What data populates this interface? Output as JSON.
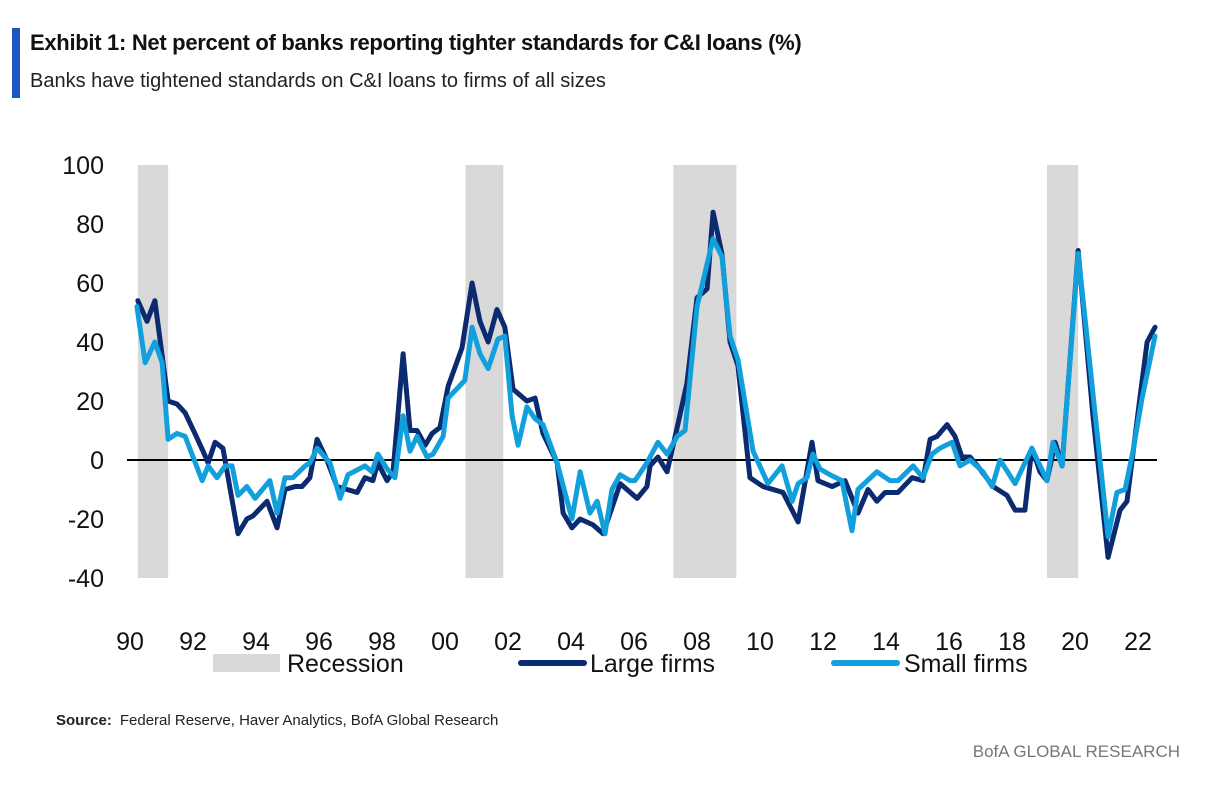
{
  "header": {
    "title": "Exhibit 1: Net percent of banks reporting tighter standards for C&I loans (%)",
    "subtitle": "Banks have tightened standards on C&I loans to firms of all sizes"
  },
  "footer": {
    "source_label": "Source:",
    "source_text": "Federal Reserve, Haver Analytics, BofA Global Research",
    "brand": "BofA GLOBAL RESEARCH"
  },
  "chart_data": {
    "type": "line",
    "title": "Exhibit 1: Net percent of banks reporting tighter standards for C&I loans (%)",
    "xlabel": "",
    "ylabel": "",
    "ylim": [
      -40,
      100
    ],
    "yticks": [
      -40,
      -20,
      0,
      20,
      40,
      60,
      80,
      100
    ],
    "xlim": [
      1990,
      2022.7
    ],
    "xticks": [
      {
        "value": 1990,
        "label": "90"
      },
      {
        "value": 1992,
        "label": "92"
      },
      {
        "value": 1994,
        "label": "94"
      },
      {
        "value": 1996,
        "label": "96"
      },
      {
        "value": 1998,
        "label": "98"
      },
      {
        "value": 2000,
        "label": "00"
      },
      {
        "value": 2002,
        "label": "02"
      },
      {
        "value": 2004,
        "label": "04"
      },
      {
        "value": 2006,
        "label": "06"
      },
      {
        "value": 2008,
        "label": "08"
      },
      {
        "value": 2010,
        "label": "10"
      },
      {
        "value": 2012,
        "label": "12"
      },
      {
        "value": 2014,
        "label": "14"
      },
      {
        "value": 2016,
        "label": "16"
      },
      {
        "value": 2018,
        "label": "18"
      },
      {
        "value": 2020,
        "label": "20"
      },
      {
        "value": 2022,
        "label": "22"
      }
    ],
    "grid": false,
    "zero_line": true,
    "legend_position": "bottom",
    "recessions": {
      "name": "Recession",
      "color": "#d9d9d9",
      "periods": [
        [
          1990.25,
          1991.21
        ],
        [
          2000.65,
          2001.85
        ],
        [
          2007.25,
          2009.25
        ],
        [
          2019.11,
          2020.1
        ]
      ]
    },
    "series": [
      {
        "name": "Large firms",
        "color": "#0b2a6f",
        "points": [
          [
            1990.25,
            54
          ],
          [
            1990.54,
            47
          ],
          [
            1990.79,
            54
          ],
          [
            1991.21,
            20
          ],
          [
            1991.49,
            19
          ],
          [
            1991.75,
            16
          ],
          [
            1992.06,
            9
          ],
          [
            1992.32,
            3
          ],
          [
            1992.48,
            -1
          ],
          [
            1992.7,
            6
          ],
          [
            1992.95,
            4
          ],
          [
            1993.43,
            -25
          ],
          [
            1993.71,
            -20
          ],
          [
            1993.9,
            -19
          ],
          [
            1994.35,
            -14
          ],
          [
            1994.67,
            -23
          ],
          [
            1994.92,
            -10
          ],
          [
            1995.24,
            -9
          ],
          [
            1995.46,
            -9
          ],
          [
            1995.71,
            -6
          ],
          [
            1995.94,
            7
          ],
          [
            1996.25,
            0
          ],
          [
            1996.57,
            -9
          ],
          [
            1996.89,
            -10
          ],
          [
            1997.21,
            -11
          ],
          [
            1997.46,
            -6
          ],
          [
            1997.71,
            -7
          ],
          [
            1997.87,
            -1
          ],
          [
            1998.16,
            -7
          ],
          [
            1998.35,
            -4
          ],
          [
            1998.67,
            36
          ],
          [
            1998.89,
            10
          ],
          [
            1999.11,
            10
          ],
          [
            1999.37,
            5
          ],
          [
            1999.59,
            9
          ],
          [
            1999.84,
            11
          ],
          [
            2000.1,
            25
          ],
          [
            2000.54,
            38
          ],
          [
            2000.86,
            60
          ],
          [
            2001.11,
            47
          ],
          [
            2001.37,
            40
          ],
          [
            2001.65,
            51
          ],
          [
            2001.9,
            45
          ],
          [
            2002.16,
            24
          ],
          [
            2002.6,
            20
          ],
          [
            2002.86,
            21
          ],
          [
            2003.11,
            9
          ],
          [
            2003.56,
            -1
          ],
          [
            2003.75,
            -18
          ],
          [
            2004.03,
            -23
          ],
          [
            2004.29,
            -20
          ],
          [
            2004.7,
            -22
          ],
          [
            2005.02,
            -25
          ],
          [
            2005.56,
            -8
          ],
          [
            2006.1,
            -13
          ],
          [
            2006.41,
            -9
          ],
          [
            2006.51,
            -2
          ],
          [
            2006.76,
            1
          ],
          [
            2007.05,
            -4
          ],
          [
            2007.37,
            11
          ],
          [
            2007.68,
            26
          ],
          [
            2008.0,
            55
          ],
          [
            2008.32,
            58
          ],
          [
            2008.51,
            84
          ],
          [
            2008.79,
            70
          ],
          [
            2009.05,
            40
          ],
          [
            2009.3,
            32
          ],
          [
            2009.68,
            -6
          ],
          [
            2010.1,
            -9
          ],
          [
            2010.73,
            -11
          ],
          [
            2011.21,
            -21
          ],
          [
            2011.65,
            6
          ],
          [
            2011.84,
            -7
          ],
          [
            2012.29,
            -9
          ],
          [
            2012.7,
            -7
          ],
          [
            2013.11,
            -18
          ],
          [
            2013.43,
            -10
          ],
          [
            2013.71,
            -14
          ],
          [
            2013.97,
            -11
          ],
          [
            2014.38,
            -11
          ],
          [
            2014.83,
            -6
          ],
          [
            2015.17,
            -7
          ],
          [
            2015.4,
            7
          ],
          [
            2015.62,
            8
          ],
          [
            2015.94,
            12
          ],
          [
            2016.19,
            8
          ],
          [
            2016.41,
            1
          ],
          [
            2016.67,
            1
          ],
          [
            2016.98,
            -3
          ],
          [
            2017.4,
            -9
          ],
          [
            2017.84,
            -12
          ],
          [
            2018.1,
            -17
          ],
          [
            2018.41,
            -17
          ],
          [
            2018.63,
            4
          ],
          [
            2018.89,
            -4
          ],
          [
            2019.11,
            -7
          ],
          [
            2019.37,
            6
          ],
          [
            2019.59,
            -2
          ],
          [
            2020.1,
            71
          ],
          [
            2020.57,
            15
          ],
          [
            2021.05,
            -33
          ],
          [
            2021.43,
            -17
          ],
          [
            2021.65,
            -14
          ],
          [
            2022.06,
            21
          ],
          [
            2022.29,
            40
          ],
          [
            2022.54,
            45
          ]
        ]
      },
      {
        "name": "Small firms",
        "color": "#12a0dc",
        "points": [
          [
            1990.22,
            52
          ],
          [
            1990.48,
            33
          ],
          [
            1990.79,
            40
          ],
          [
            1991.02,
            33
          ],
          [
            1991.21,
            7
          ],
          [
            1991.49,
            9
          ],
          [
            1991.75,
            8
          ],
          [
            1992.29,
            -7
          ],
          [
            1992.48,
            -2
          ],
          [
            1992.76,
            -6
          ],
          [
            1993.02,
            -2
          ],
          [
            1993.24,
            -2
          ],
          [
            1993.43,
            -12
          ],
          [
            1993.71,
            -9
          ],
          [
            1993.97,
            -13
          ],
          [
            1994.44,
            -7
          ],
          [
            1994.67,
            -18
          ],
          [
            1994.92,
            -6
          ],
          [
            1995.17,
            -6
          ],
          [
            1995.56,
            -2
          ],
          [
            1995.71,
            -1
          ],
          [
            1995.94,
            4
          ],
          [
            1996.35,
            -1
          ],
          [
            1996.67,
            -13
          ],
          [
            1996.92,
            -5
          ],
          [
            1997.46,
            -2
          ],
          [
            1997.68,
            -4
          ],
          [
            1997.87,
            2
          ],
          [
            1998.16,
            -3
          ],
          [
            1998.41,
            -6
          ],
          [
            1998.67,
            15
          ],
          [
            1998.89,
            3
          ],
          [
            1999.11,
            8
          ],
          [
            1999.43,
            1
          ],
          [
            1999.62,
            2
          ],
          [
            1999.94,
            8
          ],
          [
            2000.1,
            21
          ],
          [
            2000.63,
            27
          ],
          [
            2000.86,
            45
          ],
          [
            2001.11,
            36
          ],
          [
            2001.37,
            31
          ],
          [
            2001.68,
            41
          ],
          [
            2001.9,
            42
          ],
          [
            2002.13,
            15
          ],
          [
            2002.32,
            5
          ],
          [
            2002.6,
            18
          ],
          [
            2002.86,
            14
          ],
          [
            2003.11,
            12
          ],
          [
            2003.56,
            -1
          ],
          [
            2004.03,
            -20
          ],
          [
            2004.29,
            -4
          ],
          [
            2004.6,
            -18
          ],
          [
            2004.83,
            -14
          ],
          [
            2005.08,
            -25
          ],
          [
            2005.3,
            -10
          ],
          [
            2005.56,
            -5
          ],
          [
            2005.87,
            -7
          ],
          [
            2006.03,
            -7
          ],
          [
            2006.41,
            -1
          ],
          [
            2006.76,
            6
          ],
          [
            2007.05,
            2
          ],
          [
            2007.37,
            8
          ],
          [
            2007.62,
            10
          ],
          [
            2008.0,
            52
          ],
          [
            2008.51,
            75
          ],
          [
            2008.79,
            69
          ],
          [
            2009.05,
            42
          ],
          [
            2009.3,
            34
          ],
          [
            2009.78,
            3
          ],
          [
            2010.25,
            -8
          ],
          [
            2010.7,
            -2
          ],
          [
            2011.02,
            -14
          ],
          [
            2011.21,
            -8
          ],
          [
            2011.49,
            -6
          ],
          [
            2011.68,
            2
          ],
          [
            2011.9,
            -3
          ],
          [
            2012.22,
            -5
          ],
          [
            2012.6,
            -7
          ],
          [
            2012.92,
            -24
          ],
          [
            2013.11,
            -10
          ],
          [
            2013.71,
            -4
          ],
          [
            2014.13,
            -7
          ],
          [
            2014.38,
            -7
          ],
          [
            2014.86,
            -2
          ],
          [
            2015.17,
            -6
          ],
          [
            2015.46,
            2
          ],
          [
            2015.71,
            4
          ],
          [
            2016.1,
            6
          ],
          [
            2016.35,
            -2
          ],
          [
            2016.67,
            0
          ],
          [
            2017.08,
            -4
          ],
          [
            2017.37,
            -9
          ],
          [
            2017.62,
            0
          ],
          [
            2018.1,
            -8
          ],
          [
            2018.63,
            4
          ],
          [
            2019.11,
            -7
          ],
          [
            2019.3,
            6
          ],
          [
            2019.59,
            -2
          ],
          [
            2020.1,
            70
          ],
          [
            2021.05,
            -26
          ],
          [
            2021.33,
            -11
          ],
          [
            2021.59,
            -10
          ],
          [
            2021.84,
            3
          ],
          [
            2022.13,
            21
          ],
          [
            2022.54,
            42
          ]
        ]
      }
    ]
  }
}
